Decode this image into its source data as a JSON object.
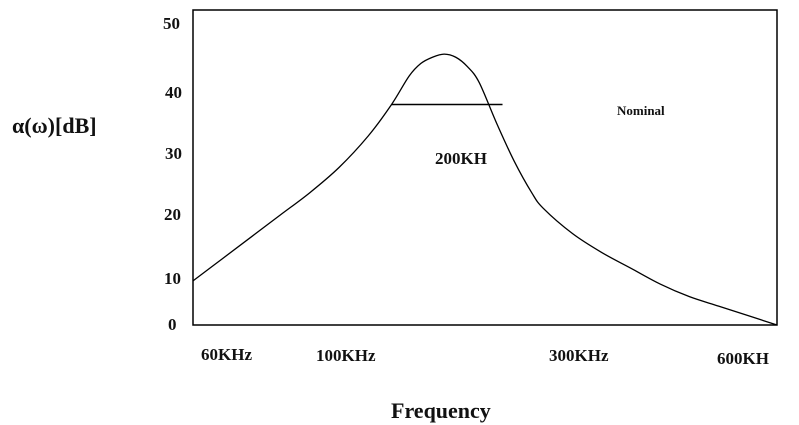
{
  "chart_data": {
    "type": "line",
    "title": "",
    "xlabel": "Frequency",
    "ylabel": "α(ω)[dB]",
    "ylim": [
      0,
      50
    ],
    "grid": false,
    "y_ticks": [
      "0",
      "10",
      "20",
      "30",
      "40",
      "50"
    ],
    "x_ticks": [
      "60KHz",
      "100KHz",
      "300KHz",
      "600KH"
    ],
    "series": [
      {
        "x": [
          0,
          5,
          10,
          15,
          20,
          25,
          30,
          34,
          37,
          39,
          41,
          43,
          45,
          47,
          49,
          52,
          55,
          58,
          60,
          65,
          70,
          75,
          80,
          85,
          90,
          95,
          100
        ],
        "y": [
          7,
          10.5,
          14,
          17.5,
          21,
          25,
          30,
          35,
          39.5,
          41.5,
          42.5,
          43,
          42.5,
          41,
          38.5,
          32,
          26,
          21,
          18.5,
          14.5,
          11.5,
          9,
          6.5,
          4.5,
          3,
          1.5,
          0
        ]
      }
    ],
    "bandwidth_bar": {
      "x_start": 34,
      "x_end": 53,
      "y": 35,
      "label": "200KH"
    },
    "annotation": "Nominal"
  }
}
